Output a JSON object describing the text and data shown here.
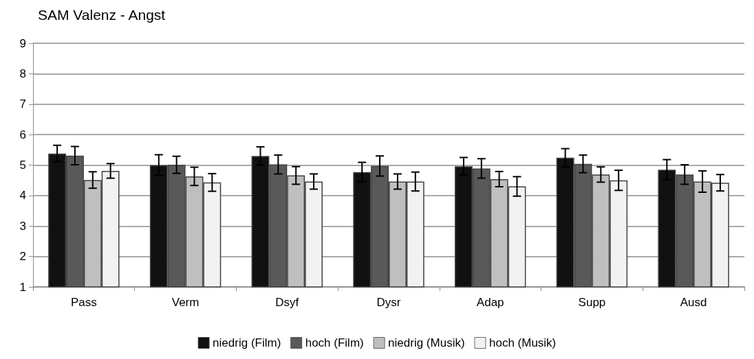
{
  "chart_data": {
    "type": "bar",
    "title": "SAM Valenz - Angst",
    "categories": [
      "Pass",
      "Verm",
      "Dsyf",
      "Dysr",
      "Adap",
      "Supp",
      "Ausd"
    ],
    "series": [
      {
        "name": "niedrig (Film)",
        "color": "#111111",
        "values": [
          5.38,
          5.0,
          5.3,
          4.77,
          4.96,
          5.24,
          4.85
        ],
        "errors": [
          0.27,
          0.34,
          0.3,
          0.32,
          0.29,
          0.3,
          0.33
        ]
      },
      {
        "name": "hoch (Film)",
        "color": "#595959",
        "values": [
          5.31,
          5.01,
          5.02,
          4.97,
          4.89,
          5.04,
          4.69
        ],
        "errors": [
          0.3,
          0.28,
          0.31,
          0.33,
          0.32,
          0.29,
          0.32
        ]
      },
      {
        "name": "niedrig (Musik)",
        "color": "#bfbfbf",
        "values": [
          4.51,
          4.63,
          4.66,
          4.46,
          4.54,
          4.69,
          4.46
        ],
        "errors": [
          0.27,
          0.3,
          0.29,
          0.25,
          0.25,
          0.25,
          0.35
        ]
      },
      {
        "name": "hoch (Musik)",
        "color": "#f2f2f2",
        "values": [
          4.81,
          4.43,
          4.46,
          4.46,
          4.3,
          4.5,
          4.42
        ],
        "errors": [
          0.24,
          0.29,
          0.25,
          0.31,
          0.32,
          0.33,
          0.27
        ]
      }
    ],
    "ylim": [
      1,
      9
    ],
    "yticks": [
      1,
      2,
      3,
      4,
      5,
      6,
      7,
      8,
      9
    ],
    "grid": "y",
    "legend": "bottom"
  }
}
